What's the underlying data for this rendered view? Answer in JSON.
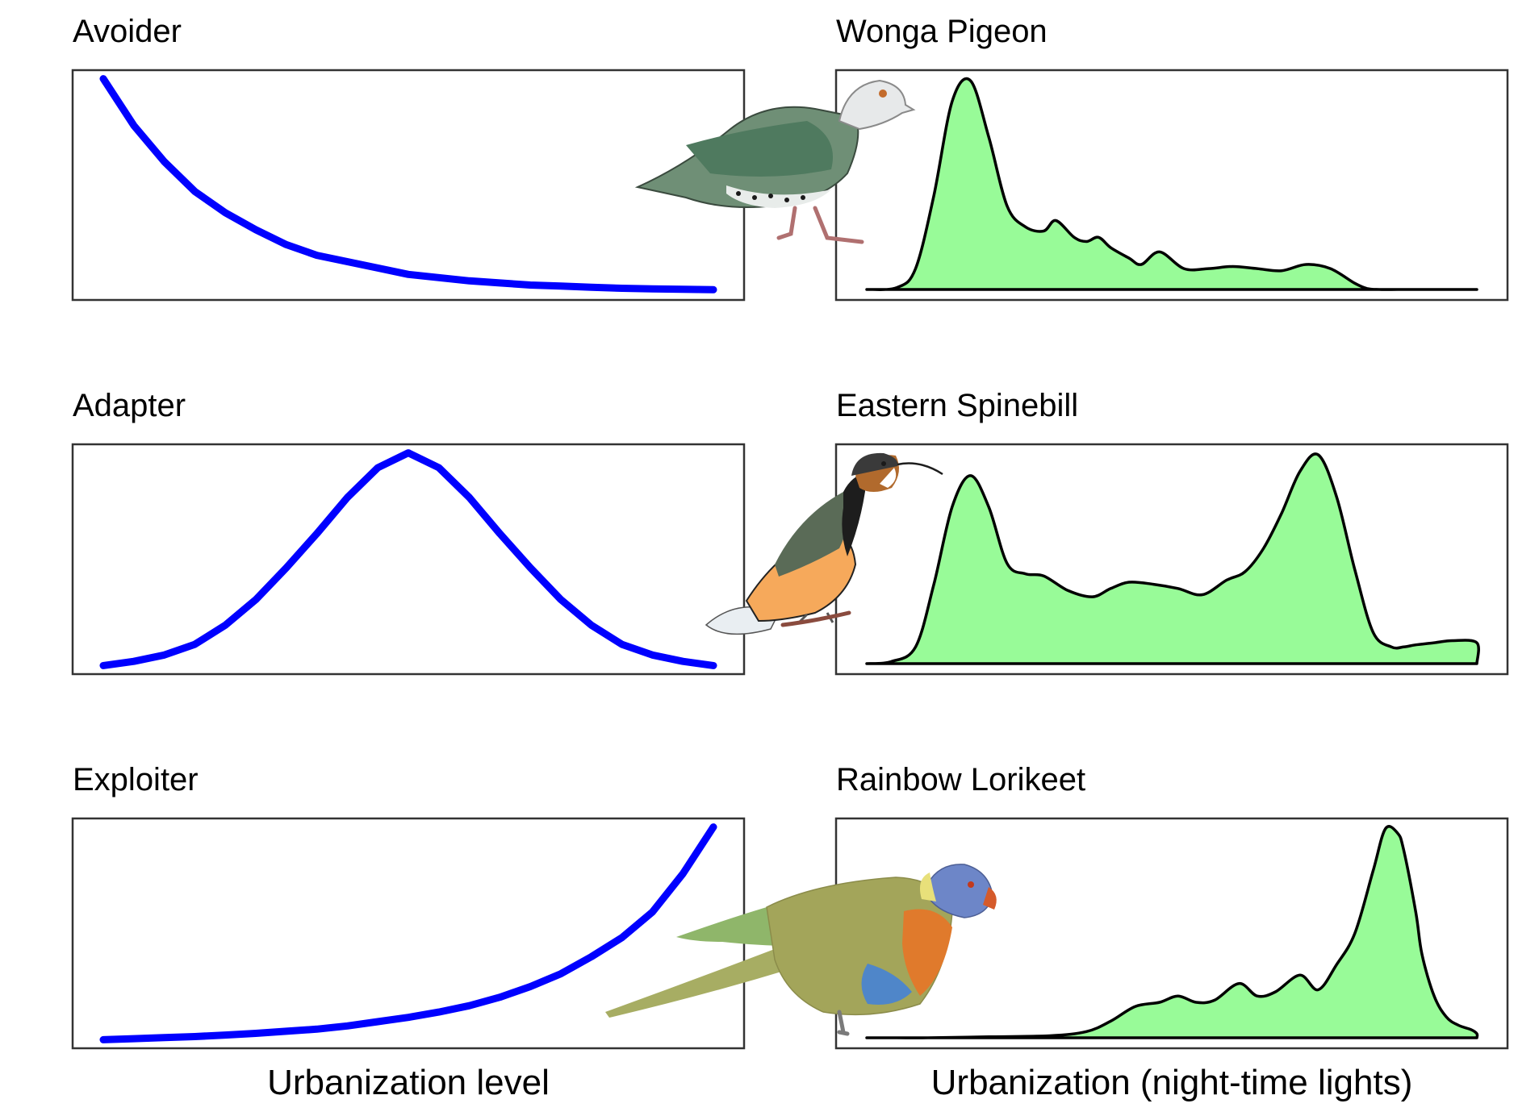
{
  "colors": {
    "curve": "#0000ff",
    "density_fill": "#98fb98",
    "density_outline": "#000000",
    "frame": "#333333"
  },
  "chart_data": [
    {
      "type": "line",
      "title": "Avoider",
      "shape": "exponential-decay",
      "x": [
        0,
        0.05,
        0.1,
        0.15,
        0.2,
        0.25,
        0.3,
        0.35,
        0.4,
        0.45,
        0.5,
        0.55,
        0.6,
        0.65,
        0.7,
        0.75,
        0.8,
        0.85,
        0.9,
        0.95,
        1
      ],
      "y": [
        1.0,
        0.78,
        0.61,
        0.47,
        0.37,
        0.29,
        0.22,
        0.17,
        0.14,
        0.11,
        0.08,
        0.065,
        0.05,
        0.04,
        0.03,
        0.025,
        0.02,
        0.015,
        0.012,
        0.01,
        0.008
      ],
      "xlabel": "",
      "ylabel": "",
      "ylim": [
        -0.04,
        1.04
      ],
      "grid": false
    },
    {
      "type": "line",
      "title": "Adapter",
      "shape": "bell",
      "x": [
        0,
        0.05,
        0.1,
        0.15,
        0.2,
        0.25,
        0.3,
        0.35,
        0.4,
        0.45,
        0.5,
        0.55,
        0.6,
        0.65,
        0.7,
        0.75,
        0.8,
        0.85,
        0.9,
        0.95,
        1
      ],
      "y": [
        0.0,
        0.02,
        0.05,
        0.1,
        0.19,
        0.31,
        0.46,
        0.62,
        0.79,
        0.93,
        1.0,
        0.93,
        0.79,
        0.62,
        0.46,
        0.31,
        0.19,
        0.1,
        0.05,
        0.02,
        0.0
      ],
      "xlabel": "",
      "ylabel": "",
      "ylim": [
        -0.04,
        1.04
      ],
      "grid": false
    },
    {
      "type": "line",
      "title": "Exploiter",
      "shape": "exponential-growth",
      "x": [
        0,
        0.05,
        0.1,
        0.15,
        0.2,
        0.25,
        0.3,
        0.35,
        0.4,
        0.45,
        0.5,
        0.55,
        0.6,
        0.65,
        0.7,
        0.75,
        0.8,
        0.85,
        0.9,
        0.95,
        1
      ],
      "y": [
        0.0,
        0.005,
        0.01,
        0.015,
        0.022,
        0.03,
        0.04,
        0.05,
        0.065,
        0.085,
        0.105,
        0.13,
        0.16,
        0.2,
        0.25,
        0.31,
        0.39,
        0.48,
        0.6,
        0.78,
        1.0
      ],
      "xlabel": "Urbanization level",
      "ylabel": "",
      "ylim": [
        -0.04,
        1.04
      ],
      "grid": false
    },
    {
      "type": "area",
      "title": "Wonga Pigeon",
      "x": [
        0,
        0.05,
        0.08,
        0.11,
        0.14,
        0.17,
        0.2,
        0.23,
        0.26,
        0.29,
        0.31,
        0.34,
        0.36,
        0.38,
        0.4,
        0.43,
        0.45,
        0.48,
        0.52,
        0.56,
        0.6,
        0.64,
        0.68,
        0.72,
        0.76,
        0.8,
        0.82,
        0.84,
        0.87,
        0.9,
        0.95,
        1
      ],
      "y": [
        0.0,
        0.01,
        0.1,
        0.45,
        0.9,
        1.0,
        0.73,
        0.4,
        0.3,
        0.28,
        0.33,
        0.25,
        0.23,
        0.25,
        0.2,
        0.15,
        0.12,
        0.18,
        0.1,
        0.1,
        0.11,
        0.1,
        0.09,
        0.12,
        0.1,
        0.03,
        0.005,
        0.0,
        0.0,
        0.0,
        0.0,
        0.0
      ],
      "xlabel": "",
      "ylabel": "",
      "ylim": [
        -0.05,
        1.05
      ],
      "grid": false
    },
    {
      "type": "area",
      "title": "Eastern Spinebill",
      "x": [
        0,
        0.04,
        0.08,
        0.11,
        0.14,
        0.17,
        0.2,
        0.23,
        0.26,
        0.29,
        0.33,
        0.37,
        0.4,
        0.43,
        0.47,
        0.51,
        0.55,
        0.59,
        0.62,
        0.65,
        0.68,
        0.71,
        0.74,
        0.77,
        0.8,
        0.83,
        0.86,
        0.88,
        0.9,
        0.93,
        0.96,
        1,
        1
      ],
      "y": [
        0.0,
        0.01,
        0.08,
        0.38,
        0.75,
        0.9,
        0.75,
        0.48,
        0.43,
        0.42,
        0.35,
        0.32,
        0.36,
        0.39,
        0.38,
        0.36,
        0.33,
        0.4,
        0.44,
        0.55,
        0.72,
        0.92,
        1.0,
        0.8,
        0.45,
        0.15,
        0.08,
        0.08,
        0.09,
        0.1,
        0.11,
        0.1,
        0.0
      ],
      "xlabel": "",
      "ylabel": "",
      "ylim": [
        -0.05,
        1.05
      ],
      "grid": false
    },
    {
      "type": "area",
      "title": "Rainbow Lorikeet",
      "x": [
        0,
        0.05,
        0.1,
        0.2,
        0.3,
        0.36,
        0.4,
        0.44,
        0.48,
        0.51,
        0.54,
        0.57,
        0.61,
        0.64,
        0.67,
        0.71,
        0.74,
        0.77,
        0.8,
        0.83,
        0.85,
        0.87,
        0.88,
        0.9,
        0.91,
        0.93,
        0.95,
        0.97,
        0.99,
        1,
        1
      ],
      "y": [
        0.0,
        0.0,
        0.0,
        0.005,
        0.01,
        0.03,
        0.08,
        0.15,
        0.17,
        0.2,
        0.17,
        0.18,
        0.26,
        0.2,
        0.22,
        0.3,
        0.23,
        0.35,
        0.5,
        0.8,
        1.0,
        0.98,
        0.9,
        0.6,
        0.4,
        0.2,
        0.1,
        0.06,
        0.04,
        0.02,
        0.0
      ],
      "xlabel": "Urbanization (night-time lights)",
      "ylabel": "",
      "ylim": [
        -0.05,
        1.05
      ],
      "grid": false
    }
  ],
  "illustrations": [
    "wonga-pigeon",
    "eastern-spinebill",
    "rainbow-lorikeet"
  ]
}
